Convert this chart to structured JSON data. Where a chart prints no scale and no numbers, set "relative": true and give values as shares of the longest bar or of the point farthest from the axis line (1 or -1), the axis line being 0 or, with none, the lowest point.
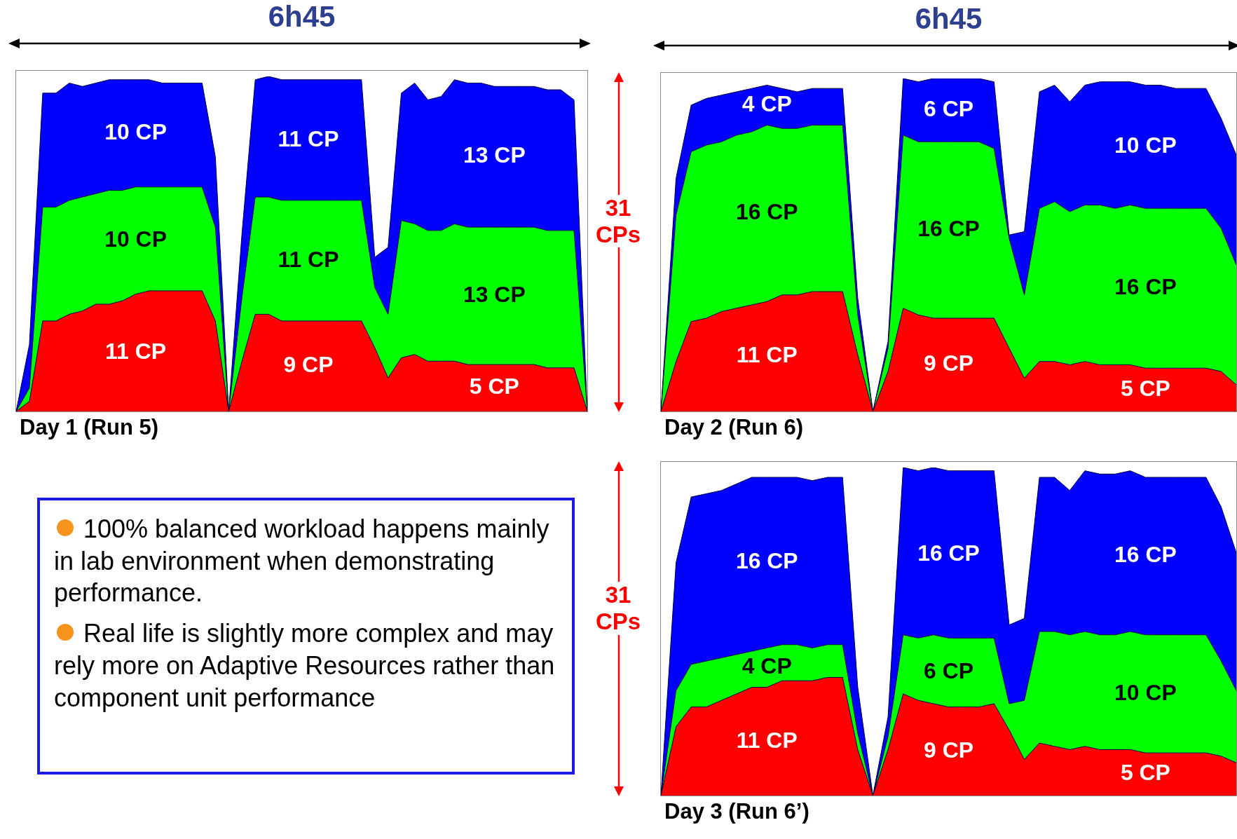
{
  "chart_data": [
    {
      "type": "area",
      "title": "6h45",
      "xlabel": "Day 1 (Run 5)",
      "stacked": true,
      "relative": true,
      "categories": [
        null,
        null,
        null,
        null,
        null,
        null,
        null,
        null,
        null,
        null,
        null,
        null,
        null,
        null,
        null,
        null,
        null,
        null,
        null,
        null,
        null,
        null,
        null,
        null,
        null,
        null,
        null,
        null,
        null,
        null,
        null,
        null,
        null,
        null,
        null,
        null,
        null,
        null,
        null,
        null,
        null,
        null,
        null,
        null
      ],
      "series": [
        {
          "color": "#ff0000",
          "values": [
            0,
            0.03,
            0.27,
            0.27,
            0.29,
            0.3,
            0.32,
            0.32,
            0.33,
            0.35,
            0.36,
            0.36,
            0.36,
            0.36,
            0.36,
            0.27,
            0,
            0.15,
            0.29,
            0.29,
            0.27,
            0.27,
            0.27,
            0.27,
            0.27,
            0.27,
            0.27,
            0.19,
            0.1,
            0.16,
            0.17,
            0.15,
            0.15,
            0.15,
            0.14,
            0.14,
            0.14,
            0.14,
            0.14,
            0.14,
            0.13,
            0.13,
            0.13,
            0
          ]
        },
        {
          "color": "#00ff00",
          "values": [
            0,
            0.04,
            0.34,
            0.34,
            0.34,
            0.34,
            0.33,
            0.34,
            0.33,
            0.32,
            0.31,
            0.31,
            0.31,
            0.31,
            0.31,
            0.28,
            0,
            0.19,
            0.35,
            0.35,
            0.36,
            0.36,
            0.36,
            0.36,
            0.36,
            0.36,
            0.36,
            0.18,
            0.19,
            0.41,
            0.39,
            0.39,
            0.39,
            0.41,
            0.41,
            0.41,
            0.41,
            0.41,
            0.41,
            0.41,
            0.41,
            0.41,
            0.41,
            0
          ]
        },
        {
          "color": "#0000ff",
          "values": [
            0,
            0.13,
            0.34,
            0.34,
            0.35,
            0.33,
            0.33,
            0.33,
            0.33,
            0.32,
            0.32,
            0.31,
            0.31,
            0.31,
            0.31,
            0.21,
            0,
            0.19,
            0.35,
            0.36,
            0.36,
            0.36,
            0.36,
            0.36,
            0.36,
            0.36,
            0.36,
            0.09,
            0.2,
            0.38,
            0.42,
            0.39,
            0.4,
            0.43,
            0.43,
            0.43,
            0.42,
            0.42,
            0.42,
            0.42,
            0.42,
            0.42,
            0.39,
            0
          ]
        }
      ],
      "annotations": [
        "11 CP",
        "10 CP",
        "10 CP",
        "9 CP",
        "11 CP",
        "11 CP",
        "5 CP",
        "13 CP",
        "13 CP"
      ]
    },
    {
      "type": "area",
      "title": "6h45",
      "xlabel": "Day 2 (Run 6)",
      "ylabel": "31 CPs",
      "stacked": true,
      "relative": true,
      "categories": [
        null,
        null,
        null,
        null,
        null,
        null,
        null,
        null,
        null,
        null,
        null,
        null,
        null,
        null,
        null,
        null,
        null,
        null,
        null,
        null,
        null,
        null,
        null,
        null,
        null,
        null,
        null,
        null,
        null,
        null,
        null,
        null,
        null,
        null,
        null,
        null,
        null,
        null,
        null
      ],
      "series": [
        {
          "color": "#ff0000",
          "values": [
            0,
            0.15,
            0.27,
            0.28,
            0.3,
            0.31,
            0.32,
            0.33,
            0.35,
            0.35,
            0.36,
            0.36,
            0.36,
            0.17,
            0,
            0.12,
            0.31,
            0.29,
            0.28,
            0.28,
            0.28,
            0.28,
            0.28,
            0.19,
            0.1,
            0.15,
            0.15,
            0.14,
            0.15,
            0.14,
            0.14,
            0.14,
            0.13,
            0.13,
            0.13,
            0.13,
            0.13,
            0.12,
            0.08
          ]
        },
        {
          "color": "#00ff00",
          "values": [
            0,
            0.44,
            0.51,
            0.52,
            0.51,
            0.52,
            0.52,
            0.53,
            0.5,
            0.5,
            0.5,
            0.5,
            0.5,
            0.12,
            0,
            0.07,
            0.52,
            0.52,
            0.53,
            0.53,
            0.53,
            0.53,
            0.51,
            0.33,
            0.25,
            0.46,
            0.48,
            0.46,
            0.47,
            0.48,
            0.47,
            0.48,
            0.48,
            0.48,
            0.48,
            0.48,
            0.48,
            0.43,
            0.36
          ]
        },
        {
          "color": "#0000ff",
          "values": [
            0,
            0.11,
            0.14,
            0.14,
            0.14,
            0.13,
            0.13,
            0.12,
            0.12,
            0.11,
            0.11,
            0.11,
            0.11,
            0.05,
            0,
            0.02,
            0.17,
            0.18,
            0.19,
            0.19,
            0.19,
            0.19,
            0.2,
            0.01,
            0.19,
            0.35,
            0.35,
            0.33,
            0.36,
            0.37,
            0.38,
            0.37,
            0.37,
            0.37,
            0.36,
            0.36,
            0.36,
            0.33,
            0.33
          ]
        }
      ],
      "annotations": [
        "11 CP",
        "16 CP",
        "4 CP",
        "9 CP",
        "16 CP",
        "6 CP",
        "5 CP",
        "16 CP",
        "10 CP"
      ]
    },
    {
      "type": "area",
      "xlabel": "Day 3 (Run 6’)",
      "ylabel": "31 CPs",
      "stacked": true,
      "relative": true,
      "categories": [
        null,
        null,
        null,
        null,
        null,
        null,
        null,
        null,
        null,
        null,
        null,
        null,
        null,
        null,
        null,
        null,
        null,
        null,
        null,
        null,
        null,
        null,
        null,
        null,
        null,
        null,
        null,
        null,
        null,
        null,
        null,
        null,
        null,
        null,
        null,
        null,
        null,
        null,
        null
      ],
      "series": [
        {
          "color": "#ff0000",
          "values": [
            0,
            0.21,
            0.27,
            0.27,
            0.29,
            0.31,
            0.33,
            0.33,
            0.35,
            0.35,
            0.35,
            0.36,
            0.36,
            0.14,
            0,
            0.14,
            0.31,
            0.29,
            0.28,
            0.27,
            0.27,
            0.27,
            0.28,
            0.2,
            0.11,
            0.16,
            0.15,
            0.14,
            0.15,
            0.14,
            0.14,
            0.14,
            0.13,
            0.13,
            0.13,
            0.13,
            0.13,
            0.12,
            0.1
          ]
        },
        {
          "color": "#00ff00",
          "values": [
            0,
            0.11,
            0.13,
            0.14,
            0.13,
            0.12,
            0.11,
            0.12,
            0.11,
            0.11,
            0.1,
            0.1,
            0.1,
            0.05,
            0,
            0.04,
            0.18,
            0.19,
            0.21,
            0.21,
            0.21,
            0.21,
            0.2,
            0.08,
            0.18,
            0.34,
            0.35,
            0.35,
            0.35,
            0.35,
            0.35,
            0.36,
            0.36,
            0.36,
            0.36,
            0.36,
            0.36,
            0.29,
            0.22
          ]
        },
        {
          "color": "#0000ff",
          "values": [
            0,
            0.39,
            0.51,
            0.51,
            0.51,
            0.52,
            0.53,
            0.52,
            0.51,
            0.51,
            0.51,
            0.51,
            0.51,
            0.14,
            0,
            0.06,
            0.51,
            0.51,
            0.51,
            0.51,
            0.51,
            0.51,
            0.51,
            0.24,
            0.25,
            0.47,
            0.47,
            0.44,
            0.49,
            0.49,
            0.49,
            0.49,
            0.48,
            0.48,
            0.48,
            0.48,
            0.48,
            0.47,
            0.42
          ]
        }
      ],
      "annotations": [
        "11 CP",
        "4 CP",
        "16 CP",
        "9 CP",
        "6 CP",
        "16 CP",
        "5 CP",
        "10 CP",
        "16 CP"
      ]
    },
    {
      "type": "other",
      "annotations": [
        "100% balanced workload happens mainly in lab environment when demonstrating performance.",
        "Real life is slightly more complex and may rely more on Adaptive Resources rather than component unit performance"
      ]
    }
  ]
}
